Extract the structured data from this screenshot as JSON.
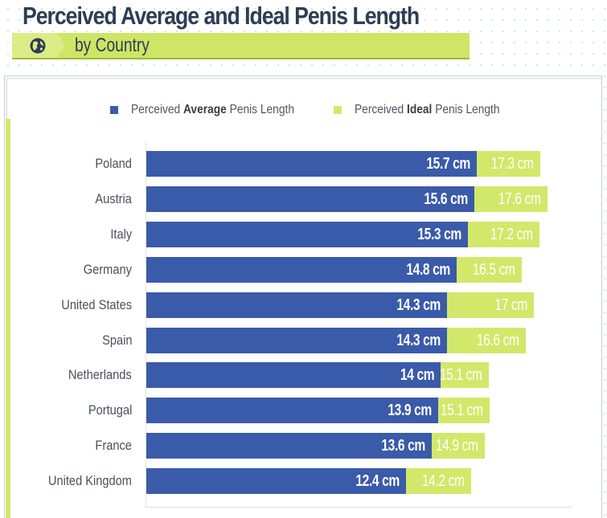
{
  "header": {
    "title": "Perceived Average and Ideal Penis Length",
    "subtitle": "by Country",
    "subtitle_icon": "globe-icon"
  },
  "colors": {
    "average": "#3a5aaa",
    "ideal": "#d2e86a",
    "title": "#2c3e54",
    "accent_band": "#cfe565"
  },
  "legend": {
    "average": {
      "prefix": "Perceived ",
      "bold": "Average",
      "suffix": " Penis Length"
    },
    "ideal": {
      "prefix": "Perceived ",
      "bold": "Ideal",
      "suffix": " Penis Length"
    }
  },
  "chart_data": {
    "type": "bar",
    "orientation": "horizontal",
    "stacked_display": true,
    "title": "Perceived Average and Ideal Penis Length",
    "subtitle": "by Country",
    "xlabel": "",
    "ylabel": "",
    "unit": "cm",
    "grid": false,
    "legend_position": "top",
    "categories": [
      "Poland",
      "Austria",
      "Italy",
      "Germany",
      "United States",
      "Spain",
      "Netherlands",
      "Portugal",
      "France",
      "United Kingdom"
    ],
    "series": [
      {
        "name": "Perceived Average Penis Length",
        "color": "#3a5aaa",
        "values": [
          15.7,
          15.6,
          15.3,
          14.8,
          14.3,
          14.3,
          14.0,
          13.9,
          13.6,
          12.4
        ]
      },
      {
        "name": "Perceived Ideal Penis Length",
        "color": "#d2e86a",
        "values": [
          17.3,
          17.6,
          17.2,
          16.5,
          17.0,
          16.6,
          15.1,
          15.1,
          14.9,
          14.2
        ]
      }
    ]
  },
  "rows": [
    {
      "country": "Poland",
      "avg_label": "15.7 cm",
      "ideal_label": "17.3 cm",
      "avg_end": 593,
      "ideal_end": 672
    },
    {
      "country": "Austria",
      "avg_label": "15.6 cm",
      "ideal_label": "17.6 cm",
      "avg_end": 590,
      "ideal_end": 681
    },
    {
      "country": "Italy",
      "avg_label": "15.3 cm",
      "ideal_label": "17.2 cm",
      "avg_end": 582,
      "ideal_end": 671
    },
    {
      "country": "Germany",
      "avg_label": "14.8 cm",
      "ideal_label": "16.5 cm",
      "avg_end": 568,
      "ideal_end": 649
    },
    {
      "country": "United States",
      "avg_label": "14.3 cm",
      "ideal_label": "17 cm",
      "avg_end": 556,
      "ideal_end": 664
    },
    {
      "country": "Spain",
      "avg_label": "14.3 cm",
      "ideal_label": "16.6 cm",
      "avg_end": 556,
      "ideal_end": 654
    },
    {
      "country": "Netherlands",
      "avg_label": "14 cm",
      "ideal_label": "15.1 cm",
      "avg_end": 548,
      "ideal_end": 608
    },
    {
      "country": "Portugal",
      "avg_label": "13.9 cm",
      "ideal_label": "15.1 cm",
      "avg_end": 545,
      "ideal_end": 609
    },
    {
      "country": "France",
      "avg_label": "13.6 cm",
      "ideal_label": "14.9 cm",
      "avg_end": 537,
      "ideal_end": 603
    },
    {
      "country": "United Kingdom",
      "avg_label": "12.4 cm",
      "ideal_label": "14.2 cm",
      "avg_end": 505,
      "ideal_end": 586
    }
  ]
}
